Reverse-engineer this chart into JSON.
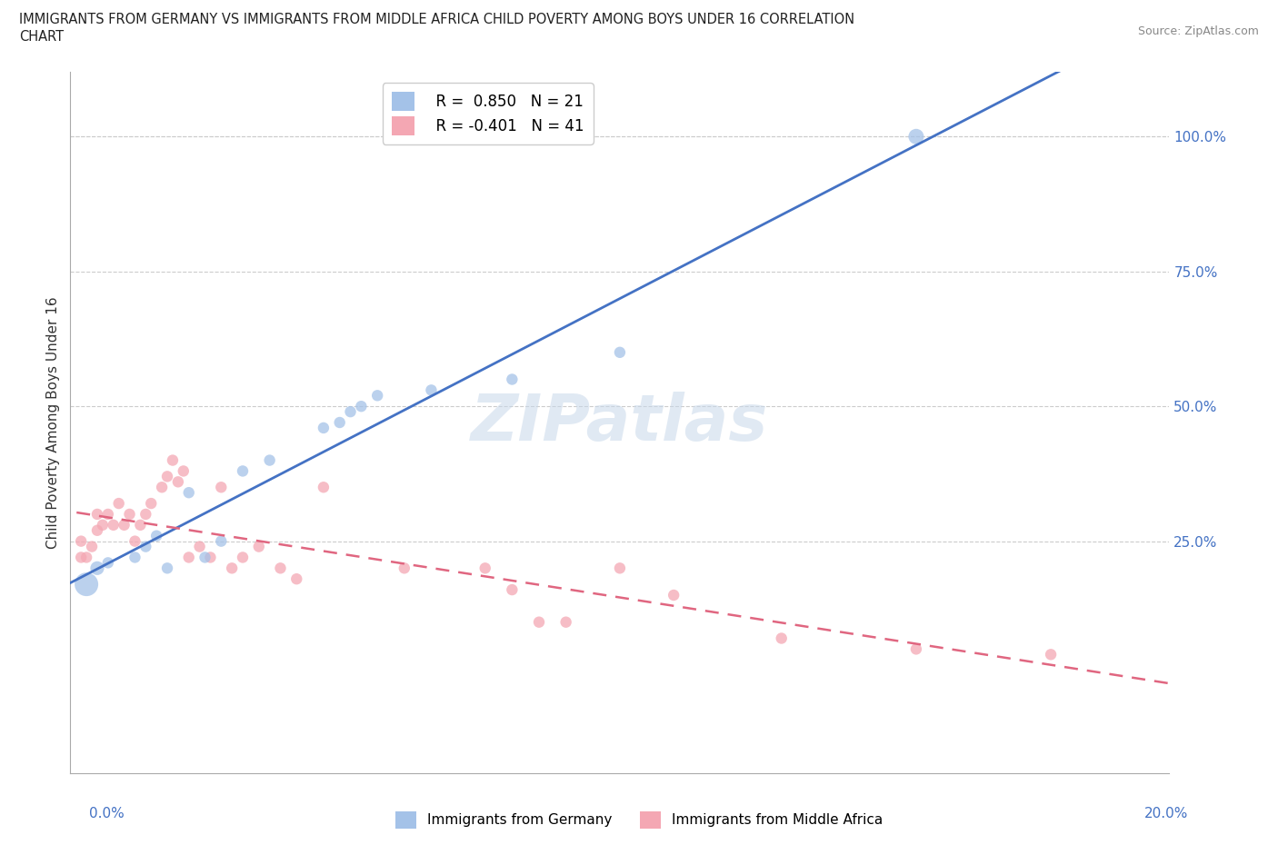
{
  "title_line1": "IMMIGRANTS FROM GERMANY VS IMMIGRANTS FROM MIDDLE AFRICA CHILD POVERTY AMONG BOYS UNDER 16 CORRELATION",
  "title_line2": "CHART",
  "source": "Source: ZipAtlas.com",
  "ylabel": "Child Poverty Among Boys Under 16",
  "xlim": [
    -0.002,
    0.202
  ],
  "ylim": [
    -0.18,
    1.12
  ],
  "ytick_vals": [
    0.0,
    0.25,
    0.5,
    0.75,
    1.0
  ],
  "ytick_labels": [
    "",
    "25.0%",
    "50.0%",
    "75.0%",
    "100.0%"
  ],
  "legend_r1": "R =  0.850   N = 21",
  "legend_r2": "R = -0.401   N = 41",
  "germany_color": "#a4c2e8",
  "middle_africa_color": "#f4a7b3",
  "germany_line_color": "#4472c4",
  "middle_africa_line_color": "#e06680",
  "background_color": "#ffffff",
  "watermark": "ZIPatlas",
  "germany_x": [
    0.001,
    0.003,
    0.005,
    0.01,
    0.012,
    0.014,
    0.016,
    0.02,
    0.023,
    0.026,
    0.03,
    0.035,
    0.045,
    0.048,
    0.05,
    0.052,
    0.055,
    0.065,
    0.08,
    0.1,
    0.155
  ],
  "germany_y": [
    0.17,
    0.2,
    0.21,
    0.22,
    0.24,
    0.26,
    0.2,
    0.34,
    0.22,
    0.25,
    0.38,
    0.4,
    0.46,
    0.47,
    0.49,
    0.5,
    0.52,
    0.53,
    0.55,
    0.6,
    1.0
  ],
  "germany_size": [
    350,
    120,
    80,
    80,
    80,
    80,
    80,
    80,
    80,
    80,
    80,
    80,
    80,
    80,
    80,
    80,
    80,
    80,
    80,
    80,
    150
  ],
  "middle_africa_x": [
    0.0,
    0.0,
    0.001,
    0.002,
    0.003,
    0.003,
    0.004,
    0.005,
    0.006,
    0.007,
    0.008,
    0.009,
    0.01,
    0.011,
    0.012,
    0.013,
    0.015,
    0.016,
    0.017,
    0.018,
    0.019,
    0.02,
    0.022,
    0.024,
    0.026,
    0.028,
    0.03,
    0.033,
    0.037,
    0.04,
    0.045,
    0.06,
    0.075,
    0.08,
    0.085,
    0.09,
    0.1,
    0.11,
    0.13,
    0.155,
    0.18
  ],
  "middle_africa_y": [
    0.22,
    0.25,
    0.22,
    0.24,
    0.27,
    0.3,
    0.28,
    0.3,
    0.28,
    0.32,
    0.28,
    0.3,
    0.25,
    0.28,
    0.3,
    0.32,
    0.35,
    0.37,
    0.4,
    0.36,
    0.38,
    0.22,
    0.24,
    0.22,
    0.35,
    0.2,
    0.22,
    0.24,
    0.2,
    0.18,
    0.35,
    0.2,
    0.2,
    0.16,
    0.1,
    0.1,
    0.2,
    0.15,
    0.07,
    0.05,
    0.04
  ],
  "middle_africa_size": [
    80,
    80,
    80,
    80,
    80,
    80,
    80,
    80,
    80,
    80,
    80,
    80,
    80,
    80,
    80,
    80,
    80,
    80,
    80,
    80,
    80,
    80,
    80,
    80,
    80,
    80,
    80,
    80,
    80,
    80,
    80,
    80,
    80,
    80,
    80,
    80,
    80,
    80,
    80,
    80,
    80
  ]
}
